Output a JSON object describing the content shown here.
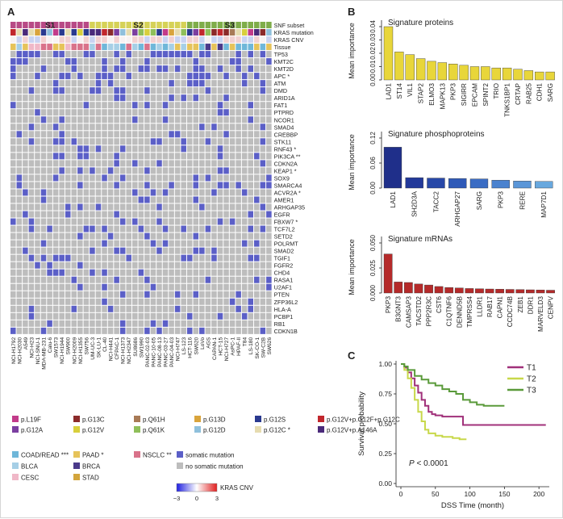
{
  "panels": {
    "A": {
      "label": "A",
      "subset_labels": [
        "S1",
        "S2",
        "S3"
      ],
      "row_labels": [
        "SNF subset",
        "KRAS mutation",
        "KRAS CNV",
        "Tissue",
        "TP53",
        "KMT2C",
        "KMT2D",
        "APC *",
        "ATM",
        "DMD",
        "ARID1A",
        "FAT1",
        "PTPRD",
        "NCOR1",
        "SMAD4",
        "CREBBP",
        "STK11",
        "RNF43 *",
        "PIK3CA **",
        "CDKN2A",
        "KEAP1 *",
        "SOX9",
        "SMARCA4",
        "ACVR2A *",
        "AMER1",
        "ARHGAP35",
        "EGFR",
        "FBXW7 *",
        "TCF7L2",
        "SETD2",
        "POLRMT",
        "SMAD2",
        "TGIF1",
        "FGFR2",
        "CHD4",
        "RASA1",
        "U2AF1",
        "PTEN",
        "ZFP36L2",
        "HLA-A",
        "PCBP1",
        "RB1",
        "CDKN1B"
      ],
      "cell_lines": [
        "NCI-H1792",
        "NCI-H2030",
        "A549",
        "NCI-H23",
        "NCI-SNU-1",
        "MDA-MB-231",
        "Calu-6",
        "SW1573",
        "NCI-H1944",
        "SW900",
        "NCI-H2009",
        "NCI-H1355",
        "SW756",
        "UM-UC-3",
        "SK-LU-1",
        "CL-40",
        "NCI-H441",
        "CFPAC-1",
        "NCI-H1373",
        "NCI-H2347",
        "SU8686",
        "SW1990",
        "PANC-02-03",
        "PANC-10-05",
        "PANC-08-13",
        "PANC-03-27",
        "PANC-04-03",
        "NCI-H747",
        "LS-123",
        "HCT-116",
        "SW620",
        "LoVo",
        "AGS",
        "CAPAN-1",
        "HCT-15",
        "NCI-H727",
        "AsPC-1",
        "HPAF-II",
        "T84",
        "LS-180",
        "SK-CO-1",
        "SW-C2B",
        "SW626"
      ],
      "legend": {
        "mutations": [
          {
            "label": "p.L19F",
            "color": "#c23b8a"
          },
          {
            "label": "p.G12A",
            "color": "#7b3fa0"
          },
          {
            "label": "p.G13C",
            "color": "#8b2a2a"
          },
          {
            "label": "p.G12V",
            "color": "#d8cf3c"
          },
          {
            "label": "p.Q61H",
            "color": "#a87a56"
          },
          {
            "label": "p.Q61K",
            "color": "#8fbf5a"
          },
          {
            "label": "p.G13D",
            "color": "#d9a43c"
          },
          {
            "label": "p.G12D",
            "color": "#8fc0dc"
          },
          {
            "label": "p.G12S",
            "color": "#2a3a8f"
          },
          {
            "label": "p.G12C *",
            "color": "#e6dcb0"
          },
          {
            "label": "p.G12V+p.G12F+p.G12C",
            "color": "#c1272d"
          },
          {
            "label": "p.G12V+p.A146A",
            "color": "#4a2a7a"
          }
        ],
        "tissues": [
          {
            "label": "COAD/READ ***",
            "color": "#6fb7d9"
          },
          {
            "label": "PAAD *",
            "color": "#e6c35a"
          },
          {
            "label": "NSCLC **",
            "color": "#d9728a"
          },
          {
            "label": "BLCA",
            "color": "#a6cfe6"
          },
          {
            "label": "BRCA",
            "color": "#4a3a8a"
          },
          {
            "label": "CESC",
            "color": "#f0b8c8"
          },
          {
            "label": "STAD",
            "color": "#d3a53c"
          }
        ],
        "status": [
          {
            "label": "somatic mutation",
            "color": "#5b5fc7"
          },
          {
            "label": "no somatic mutation",
            "color": "#bdbdbd"
          }
        ],
        "cnv": {
          "label": "KRAS CNV",
          "min": "−3",
          "mid": "0",
          "max": "3",
          "low_color": "#1f1fe0",
          "high_color": "#e01f1f"
        }
      }
    },
    "B": {
      "label": "B",
      "ylabel": "Mean importance",
      "subplots": [
        {
          "title": "Signature proteins",
          "color": "#e8d63a",
          "categories": [
            "LAD1",
            "ST14",
            "VIL1",
            "STAP2",
            "ELMO3",
            "MAPK13",
            "PKP3",
            "SIGIRR",
            "EPCAM",
            "SPINT2",
            "TRIO",
            "TNKS1BP1",
            "CRTAP",
            "RAB25",
            "CDH1",
            "SARG"
          ],
          "values": [
            0.04,
            0.021,
            0.019,
            0.016,
            0.014,
            0.013,
            0.012,
            0.011,
            0.01,
            0.01,
            0.009,
            0.009,
            0.008,
            0.007,
            0.006,
            0.006
          ],
          "yticks": [
            "0.00",
            "0.01",
            "0.02",
            "0.03",
            "0.04"
          ],
          "ymax": 0.043
        },
        {
          "title": "Signature phosphoproteins",
          "categories": [
            "LAD1",
            "SH2D3A",
            "TACC2",
            "ARHGAP27",
            "SARG",
            "PKP3",
            "RERE",
            "MAP7D1"
          ],
          "values": [
            0.098,
            0.025,
            0.024,
            0.023,
            0.022,
            0.019,
            0.017,
            0.016
          ],
          "colors": [
            "#1f2f8a",
            "#23399a",
            "#2848a8",
            "#2f5ab8",
            "#3a6cc4",
            "#4a82cf",
            "#5a96d8",
            "#68a8de"
          ],
          "yticks": [
            "0.00",
            "0.06",
            "0.12"
          ],
          "ymax": 0.125
        },
        {
          "title": "Signature mRNAs",
          "color": "#b52a2a",
          "categories": [
            "PKP3",
            "B3GNT3",
            "CAMSAP3",
            "TACSTD2",
            "PPP2R3C",
            "CST6",
            "C1QTNF6",
            "DENND5B",
            "TMPRSS4",
            "LLDR1",
            "RAB17",
            "CAPN1",
            "CCDC74B",
            "ZEB1",
            "DDR1",
            "MARVELD3",
            "CENPV"
          ],
          "values": [
            0.039,
            0.011,
            0.0105,
            0.009,
            0.008,
            0.0065,
            0.0055,
            0.005,
            0.0045,
            0.0042,
            0.004,
            0.0038,
            0.0036,
            0.0034,
            0.0032,
            0.003,
            0.0028
          ],
          "yticks": [
            "0.000",
            "0.025",
            "0.050"
          ],
          "ymax": 0.052
        }
      ]
    },
    "C": {
      "label": "C",
      "ylabel": "Survival probability",
      "xlabel": "DSS Time (month)",
      "xticks": [
        "0",
        "50",
        "100",
        "150",
        "200"
      ],
      "yticks": [
        "0.00",
        "0.25",
        "0.50",
        "0.75",
        "1.00"
      ],
      "pvalue_text": "< 0.0001",
      "pvalue_prefix": "P",
      "legend": [
        {
          "label": "T1",
          "color": "#a0307a"
        },
        {
          "label": "T2",
          "color": "#c8d84a"
        },
        {
          "label": "T3",
          "color": "#5a9a3a"
        }
      ],
      "curves": {
        "T1": [
          [
            0,
            1
          ],
          [
            5,
            0.97
          ],
          [
            10,
            0.93
          ],
          [
            15,
            0.88
          ],
          [
            20,
            0.82
          ],
          [
            25,
            0.76
          ],
          [
            30,
            0.7
          ],
          [
            35,
            0.65
          ],
          [
            40,
            0.6
          ],
          [
            45,
            0.58
          ],
          [
            50,
            0.57
          ],
          [
            60,
            0.56
          ],
          [
            70,
            0.56
          ],
          [
            85,
            0.56
          ],
          [
            90,
            0.49
          ],
          [
            150,
            0.49
          ],
          [
            210,
            0.49
          ]
        ],
        "T2": [
          [
            0,
            1
          ],
          [
            5,
            0.95
          ],
          [
            10,
            0.88
          ],
          [
            15,
            0.8
          ],
          [
            20,
            0.7
          ],
          [
            25,
            0.6
          ],
          [
            30,
            0.52
          ],
          [
            35,
            0.45
          ],
          [
            40,
            0.42
          ],
          [
            50,
            0.4
          ],
          [
            60,
            0.39
          ],
          [
            75,
            0.38
          ],
          [
            85,
            0.37
          ],
          [
            95,
            0.37
          ]
        ],
        "T3": [
          [
            0,
            1
          ],
          [
            5,
            0.98
          ],
          [
            10,
            0.95
          ],
          [
            20,
            0.9
          ],
          [
            30,
            0.87
          ],
          [
            40,
            0.84
          ],
          [
            50,
            0.82
          ],
          [
            60,
            0.79
          ],
          [
            70,
            0.77
          ],
          [
            80,
            0.75
          ],
          [
            90,
            0.7
          ],
          [
            100,
            0.68
          ],
          [
            110,
            0.66
          ],
          [
            120,
            0.65
          ],
          [
            140,
            0.65
          ],
          [
            150,
            0.65
          ]
        ]
      },
      "xmax": 215
    }
  }
}
